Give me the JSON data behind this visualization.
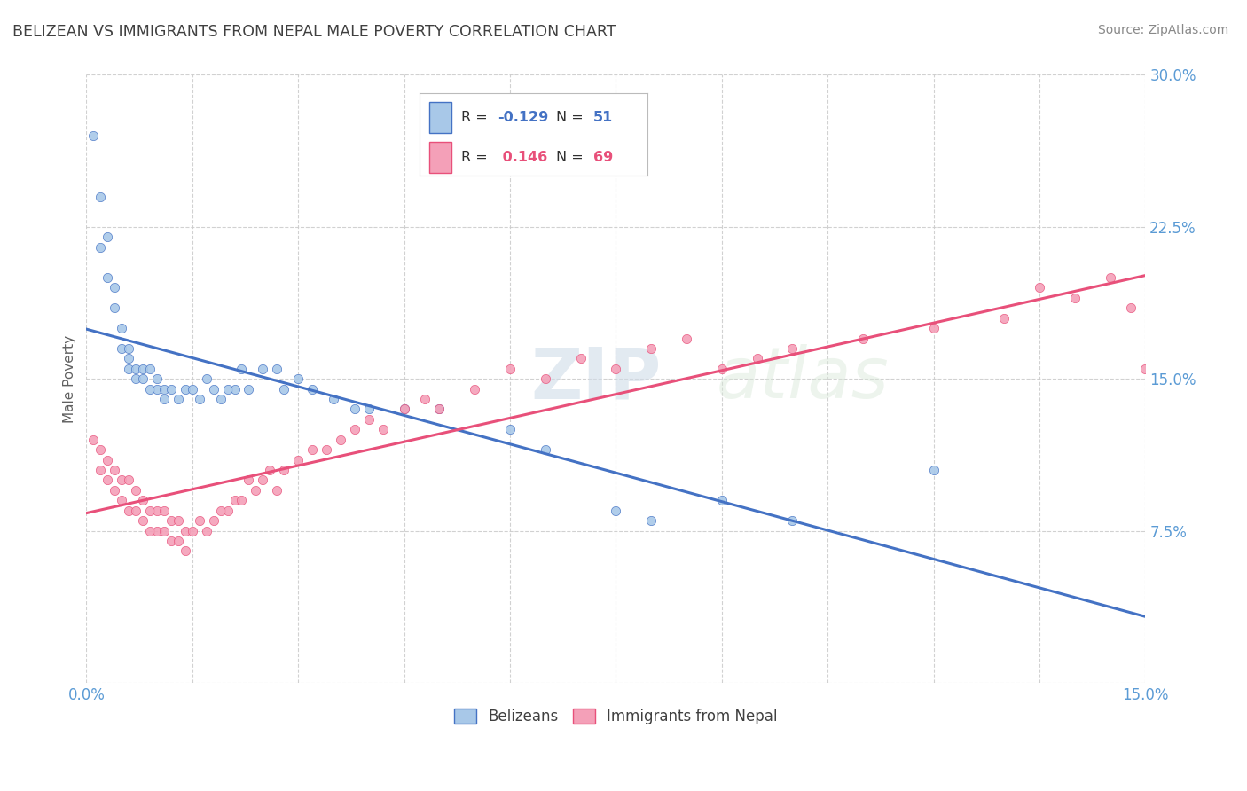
{
  "title": "BELIZEAN VS IMMIGRANTS FROM NEPAL MALE POVERTY CORRELATION CHART",
  "source_text": "Source: ZipAtlas.com",
  "ylabel": "Male Poverty",
  "xlim": [
    0.0,
    0.15
  ],
  "ylim": [
    0.0,
    0.3
  ],
  "xticks": [
    0.0,
    0.015,
    0.03,
    0.045,
    0.06,
    0.075,
    0.09,
    0.105,
    0.12,
    0.135,
    0.15
  ],
  "yticks": [
    0.0,
    0.075,
    0.15,
    0.225,
    0.3
  ],
  "ytick_labels": [
    "",
    "7.5%",
    "15.0%",
    "22.5%",
    "30.0%"
  ],
  "xtick_labels": [
    "0.0%",
    "",
    "",
    "",
    "",
    "",
    "",
    "",
    "",
    "",
    "15.0%"
  ],
  "series1_color": "#a8c8e8",
  "series2_color": "#f4a0b8",
  "line1_color": "#4472c4",
  "line2_color": "#e8507a",
  "R1": -0.129,
  "N1": 51,
  "R2": 0.146,
  "N2": 69,
  "legend_label1": "Belizeans",
  "legend_label2": "Immigrants from Nepal",
  "watermark_zip": "ZIP",
  "watermark_atlas": "atlas",
  "background_color": "#ffffff",
  "grid_color": "#cccccc",
  "title_color": "#404040",
  "axis_label_color": "#5b9bd5",
  "series1_x": [
    0.001,
    0.002,
    0.002,
    0.003,
    0.003,
    0.004,
    0.004,
    0.005,
    0.005,
    0.006,
    0.006,
    0.006,
    0.007,
    0.007,
    0.008,
    0.008,
    0.009,
    0.009,
    0.01,
    0.01,
    0.011,
    0.011,
    0.012,
    0.013,
    0.014,
    0.015,
    0.016,
    0.017,
    0.018,
    0.019,
    0.02,
    0.021,
    0.022,
    0.023,
    0.025,
    0.027,
    0.028,
    0.03,
    0.032,
    0.035,
    0.038,
    0.04,
    0.045,
    0.05,
    0.06,
    0.065,
    0.075,
    0.08,
    0.09,
    0.1,
    0.12
  ],
  "series1_y": [
    0.27,
    0.24,
    0.215,
    0.22,
    0.2,
    0.195,
    0.185,
    0.175,
    0.165,
    0.165,
    0.16,
    0.155,
    0.155,
    0.15,
    0.155,
    0.15,
    0.155,
    0.145,
    0.15,
    0.145,
    0.145,
    0.14,
    0.145,
    0.14,
    0.145,
    0.145,
    0.14,
    0.15,
    0.145,
    0.14,
    0.145,
    0.145,
    0.155,
    0.145,
    0.155,
    0.155,
    0.145,
    0.15,
    0.145,
    0.14,
    0.135,
    0.135,
    0.135,
    0.135,
    0.125,
    0.115,
    0.085,
    0.08,
    0.09,
    0.08,
    0.105
  ],
  "series2_x": [
    0.001,
    0.002,
    0.002,
    0.003,
    0.003,
    0.004,
    0.004,
    0.005,
    0.005,
    0.006,
    0.006,
    0.007,
    0.007,
    0.008,
    0.008,
    0.009,
    0.009,
    0.01,
    0.01,
    0.011,
    0.011,
    0.012,
    0.012,
    0.013,
    0.013,
    0.014,
    0.014,
    0.015,
    0.016,
    0.017,
    0.018,
    0.019,
    0.02,
    0.021,
    0.022,
    0.023,
    0.024,
    0.025,
    0.026,
    0.027,
    0.028,
    0.03,
    0.032,
    0.034,
    0.036,
    0.038,
    0.04,
    0.042,
    0.045,
    0.048,
    0.05,
    0.055,
    0.06,
    0.065,
    0.07,
    0.075,
    0.08,
    0.085,
    0.09,
    0.095,
    0.1,
    0.11,
    0.12,
    0.13,
    0.135,
    0.14,
    0.145,
    0.148,
    0.15
  ],
  "series2_y": [
    0.12,
    0.115,
    0.105,
    0.11,
    0.1,
    0.105,
    0.095,
    0.1,
    0.09,
    0.1,
    0.085,
    0.095,
    0.085,
    0.09,
    0.08,
    0.085,
    0.075,
    0.085,
    0.075,
    0.085,
    0.075,
    0.08,
    0.07,
    0.08,
    0.07,
    0.075,
    0.065,
    0.075,
    0.08,
    0.075,
    0.08,
    0.085,
    0.085,
    0.09,
    0.09,
    0.1,
    0.095,
    0.1,
    0.105,
    0.095,
    0.105,
    0.11,
    0.115,
    0.115,
    0.12,
    0.125,
    0.13,
    0.125,
    0.135,
    0.14,
    0.135,
    0.145,
    0.155,
    0.15,
    0.16,
    0.155,
    0.165,
    0.17,
    0.155,
    0.16,
    0.165,
    0.17,
    0.175,
    0.18,
    0.195,
    0.19,
    0.2,
    0.185,
    0.155
  ]
}
